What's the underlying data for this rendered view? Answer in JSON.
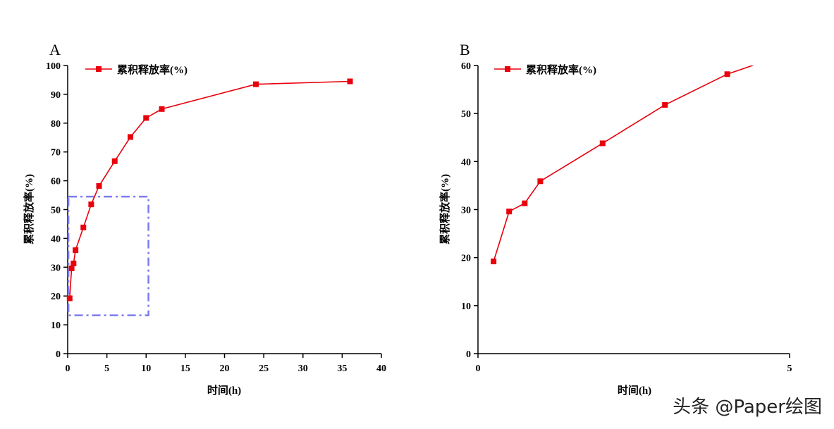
{
  "chart_data": [
    {
      "id": "A",
      "type": "line",
      "panel_label": "A",
      "xlabel": "时间(h)",
      "ylabel": "累积释放率(%)",
      "xlim": [
        0,
        40
      ],
      "ylim": [
        0,
        100
      ],
      "xticks": [
        0,
        5,
        10,
        15,
        20,
        25,
        30,
        35,
        40
      ],
      "yticks": [
        0,
        10,
        20,
        30,
        40,
        50,
        60,
        70,
        80,
        90,
        100
      ],
      "legend": "top-left",
      "color": "#e8000b",
      "series": [
        {
          "name": "累积释放率(%)",
          "x": [
            0.25,
            0.5,
            0.75,
            1,
            2,
            3,
            4,
            6,
            8,
            10,
            12,
            24,
            36
          ],
          "y": [
            19.2,
            29.6,
            31.3,
            35.9,
            43.8,
            51.8,
            58.2,
            66.8,
            75.2,
            81.8,
            84.9,
            93.5,
            94.5
          ]
        }
      ],
      "annotation": {
        "type": "zoom-box",
        "x": [
          0.1,
          10.3
        ],
        "y": [
          13.3,
          54.5
        ],
        "color": "#7b7bf0",
        "dash": "dash-dot"
      }
    },
    {
      "id": "B",
      "type": "line",
      "panel_label": "B",
      "xlabel": "时间(h)",
      "ylabel": "累积释放率(%)",
      "xlim": [
        0,
        5
      ],
      "ylim": [
        0,
        60
      ],
      "xticks": [
        0,
        5
      ],
      "yticks": [
        0,
        10,
        20,
        30,
        40,
        50,
        60
      ],
      "legend": "top-left",
      "color": "#e8000b",
      "series": [
        {
          "name": "累积释放率(%)",
          "x": [
            0.25,
            0.5,
            0.75,
            1,
            2,
            3,
            4,
            4.45
          ],
          "y": [
            19.2,
            29.6,
            31.3,
            35.9,
            43.8,
            51.8,
            58.2,
            60.2
          ]
        }
      ]
    }
  ],
  "watermark": "头条 @Paper绘图"
}
